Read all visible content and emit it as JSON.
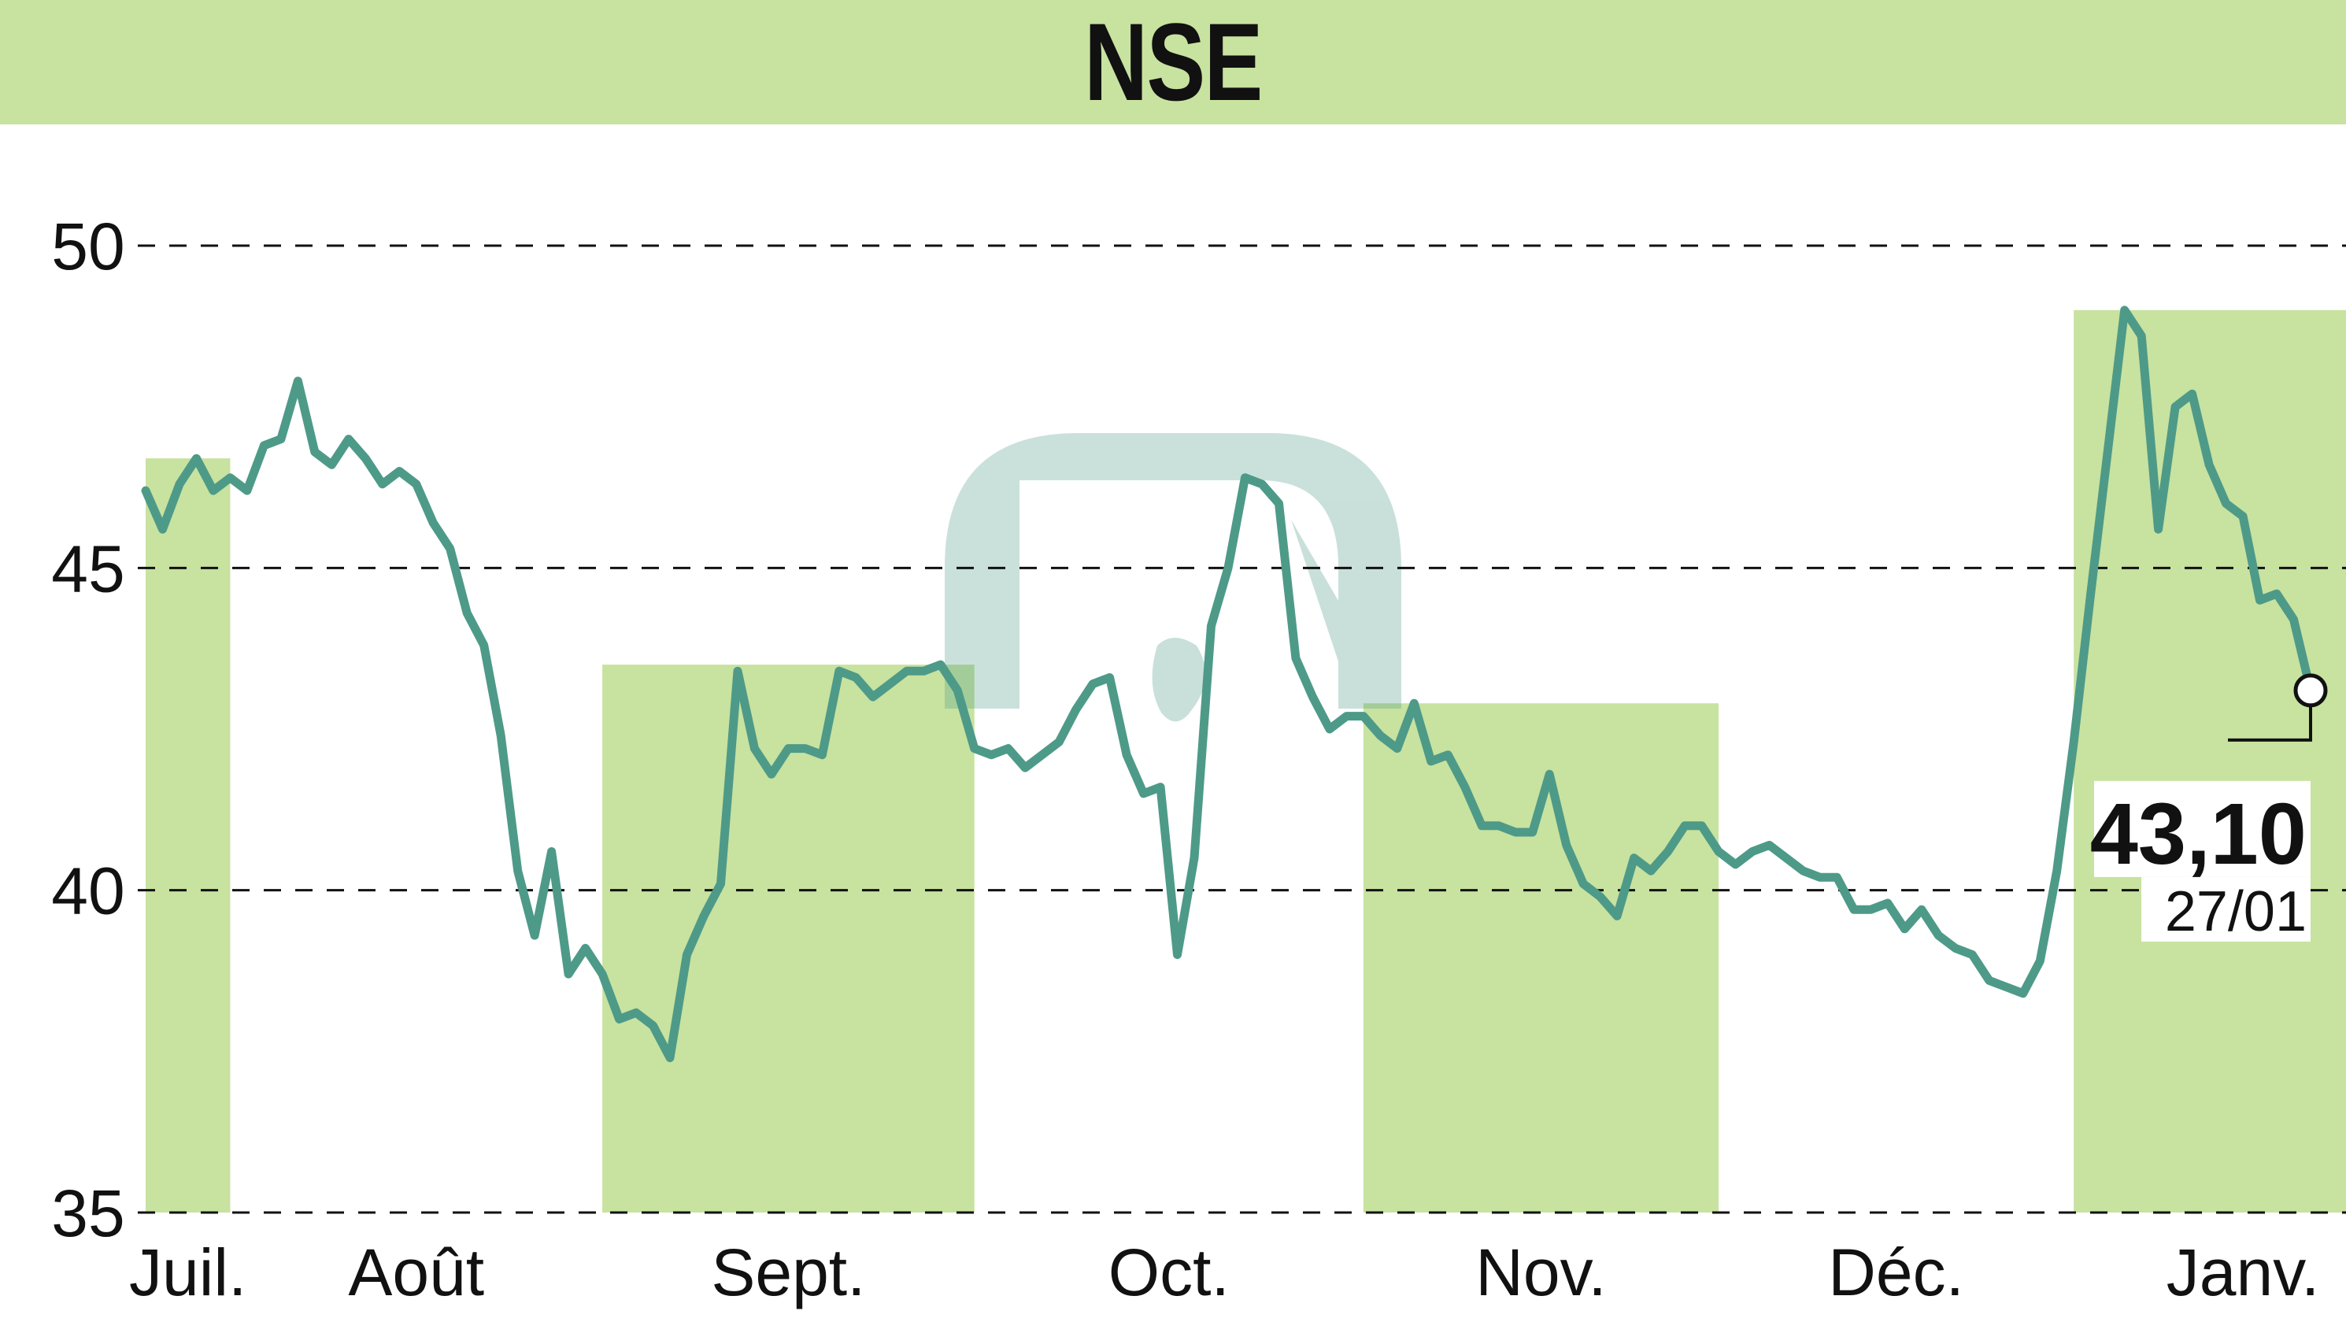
{
  "title": "NSE",
  "colors": {
    "band": "#c8e2a0",
    "line": "#4e9a88",
    "grid": "#111111",
    "text": "#111111",
    "watermark": "#4e9a88"
  },
  "chart_data": {
    "type": "line",
    "title": "NSE",
    "xlabel": "",
    "ylabel": "",
    "ylim": [
      35,
      50
    ],
    "yticks": [
      35,
      40,
      45,
      50
    ],
    "ytick_labels": [
      "35",
      "40",
      "45",
      "50"
    ],
    "grid": "horizontal dashed",
    "months": [
      {
        "label": "Juil.",
        "start": 0,
        "end": 5
      },
      {
        "label": "Août",
        "start": 5,
        "end": 27
      },
      {
        "label": "Sept.",
        "start": 27,
        "end": 49
      },
      {
        "label": "Oct.",
        "start": 49,
        "end": 72
      },
      {
        "label": "Nov.",
        "start": 72,
        "end": 93
      },
      {
        "label": "Déc.",
        "start": 93,
        "end": 114
      },
      {
        "label": "Janv.",
        "start": 114,
        "end": 134
      }
    ],
    "shaded_months": [
      "Juil.",
      "Sept.",
      "Nov.",
      "Janv."
    ],
    "series": [
      {
        "name": "NSE",
        "values": [
          46.2,
          45.6,
          46.3,
          46.7,
          46.2,
          46.4,
          46.2,
          46.9,
          47.0,
          47.9,
          46.8,
          46.6,
          47.0,
          46.7,
          46.3,
          46.5,
          46.3,
          45.7,
          45.3,
          44.3,
          43.8,
          42.4,
          40.3,
          39.3,
          40.6,
          38.7,
          39.1,
          38.7,
          38.0,
          38.1,
          37.9,
          37.4,
          39.0,
          39.6,
          40.1,
          43.4,
          42.2,
          41.8,
          42.2,
          42.2,
          42.1,
          43.4,
          43.3,
          43.0,
          43.2,
          43.4,
          43.4,
          43.5,
          43.1,
          42.2,
          42.1,
          42.2,
          41.9,
          42.1,
          42.3,
          42.8,
          43.2,
          43.3,
          42.1,
          41.5,
          41.6,
          39.0,
          40.5,
          44.1,
          45.0,
          46.4,
          46.3,
          46.0,
          43.6,
          43.0,
          42.5,
          42.7,
          42.7,
          42.4,
          42.2,
          42.9,
          42.0,
          42.1,
          41.6,
          41.0,
          41.0,
          40.9,
          40.9,
          41.8,
          40.7,
          40.1,
          39.9,
          39.6,
          40.5,
          40.3,
          40.6,
          41.0,
          41.0,
          40.6,
          40.4,
          40.6,
          40.7,
          40.5,
          40.3,
          40.2,
          40.2,
          39.7,
          39.7,
          39.8,
          39.4,
          39.7,
          39.3,
          39.1,
          39.0,
          38.6,
          38.5,
          38.4,
          38.9,
          40.3,
          42.3,
          44.6,
          46.8,
          49.0,
          48.6,
          45.6,
          47.5,
          47.7,
          46.6,
          46.0,
          45.8,
          44.5,
          44.6,
          44.2,
          43.1
        ],
        "last_value_label": "43,10",
        "last_date_label": "27/01"
      }
    ]
  }
}
